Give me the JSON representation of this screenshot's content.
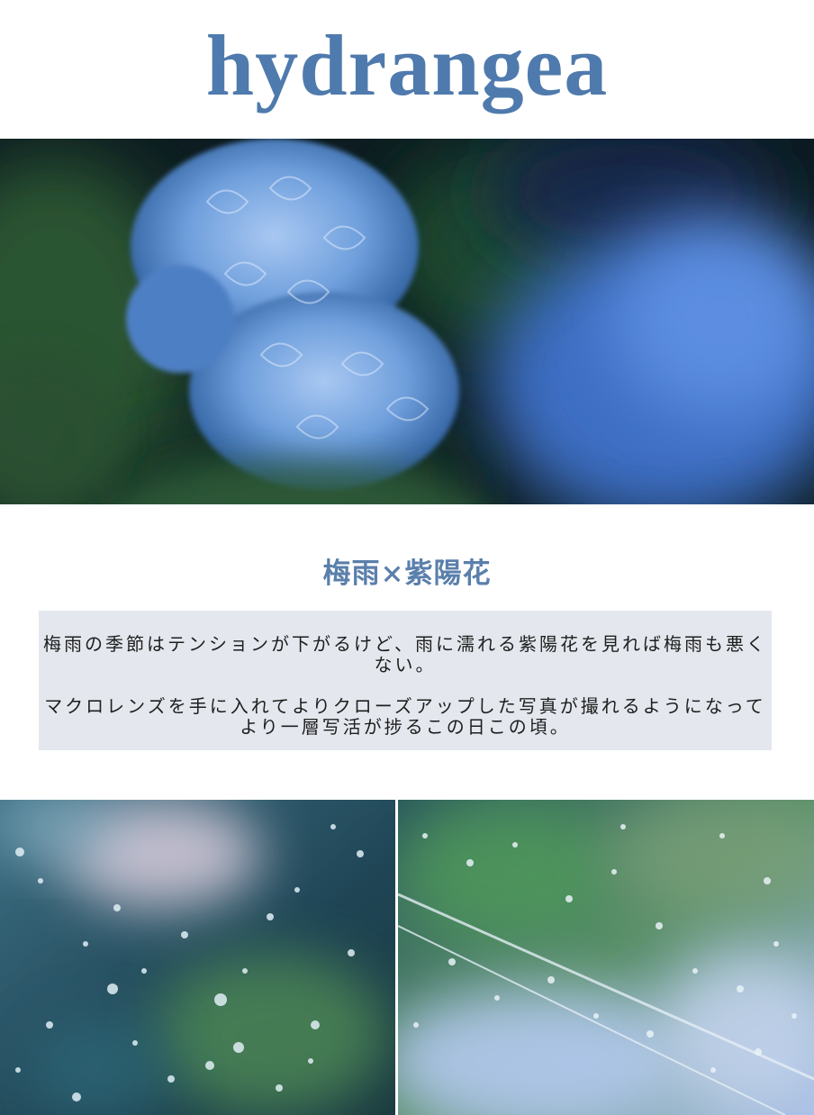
{
  "header": {
    "title": "hydrangea"
  },
  "hero_image": {
    "subject": "blue hydrangea with blurred hydrangea background",
    "colors": {
      "flower": "#6f9fdc",
      "leaf": "#2f5a34",
      "dark": "#0b1a1d"
    }
  },
  "section": {
    "title": "梅雨×紫陽花",
    "paragraphs": [
      "梅雨の季節はテンションが下がるけど、雨に濡れる紫陽花を見れば梅雨も悪くない。",
      "マクロレンズを手に入れてよりクローズアップした写真が撮れるようになってより一層写活が捗るこの日この頃。"
    ]
  },
  "gallery": [
    {
      "subject": "raindrops on glass with teal bokeh"
    },
    {
      "subject": "raindrops on umbrella with green and blue bokeh"
    }
  ],
  "colors": {
    "accent": "#4f7aad",
    "box_background": "#e4e8ee"
  }
}
